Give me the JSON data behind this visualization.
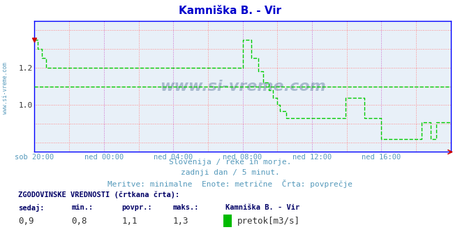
{
  "title": "Kamniška B. - Vir",
  "title_color": "#0000cc",
  "bg_color": "#ffffff",
  "plot_bg_color": "#e8f0f8",
  "line_color": "#00cc00",
  "avg_line_color": "#00cc00",
  "grid_color_red": "#ff8888",
  "grid_color_purple": "#cc66cc",
  "xlabel_color": "#5599bb",
  "xlabels": [
    "sob 20:00",
    "ned 00:00",
    "ned 04:00",
    "ned 08:00",
    "ned 12:00",
    "ned 16:00"
  ],
  "ylim": [
    0.75,
    1.45
  ],
  "yticks": [
    1.0,
    1.2
  ],
  "avg_value": 1.1,
  "watermark": "www.si-vreme.com",
  "subtitle1": "Slovenija / reke in morje.",
  "subtitle2": "zadnji dan / 5 minut.",
  "subtitle3": "Meritve: minimalne  Enote: metrične  Črta: povprečje",
  "footer_label1": "ZGODOVINSKE VREDNOSTI (črtkana črta):",
  "footer_col1": "sedaj:",
  "footer_col2": "min.:",
  "footer_col3": "povpr.:",
  "footer_col4": "maks.:",
  "footer_station": "Kamniška B. - Vir",
  "footer_unit": "pretok[m3/s]",
  "footer_val1": "0,9",
  "footer_val2": "0,8",
  "footer_val3": "1,1",
  "footer_val4": "1,3",
  "legend_color": "#00bb00",
  "spine_color": "#0000ff",
  "arrow_color": "#cc0000",
  "marker_color": "#cc0000"
}
